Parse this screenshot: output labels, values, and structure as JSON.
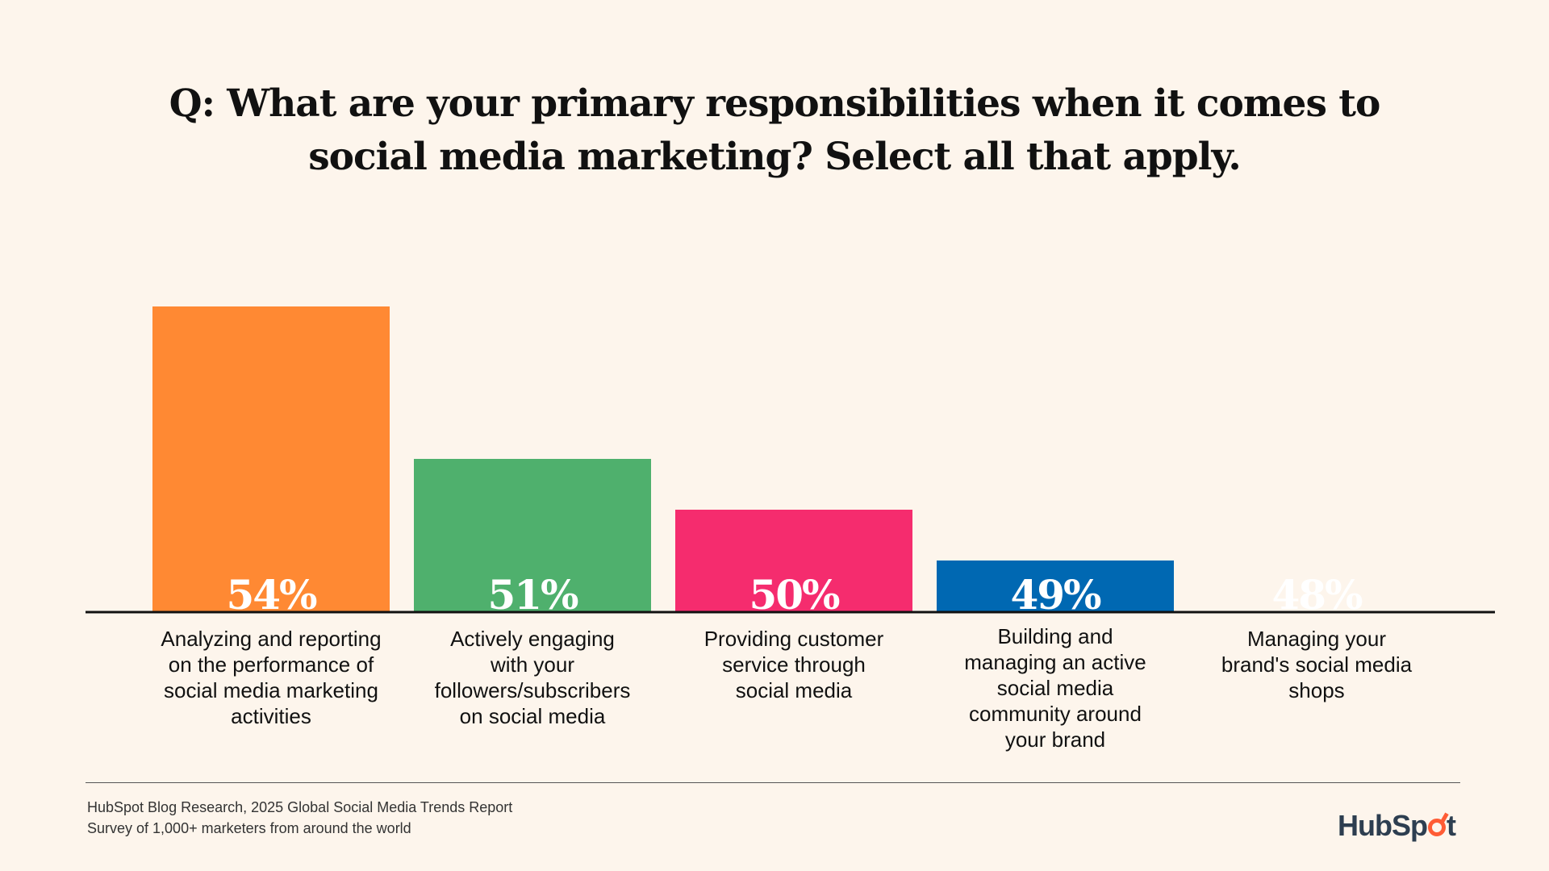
{
  "chart_data": {
    "type": "bar",
    "title": "Q: What are your primary responsibilities when it comes to social media marketing? Select all that apply.",
    "title_lines": [
      "Q: What are your primary responsibilities when it comes to",
      "social media marketing? Select all that apply."
    ],
    "categories": [
      "Analyzing and reporting on the performance of social media marketing activities",
      "Actively engaging with your followers/subscribers on social media",
      "Providing customer service through social media",
      "Building and managing an active social media community around your brand",
      "Managing your brand's social media shops"
    ],
    "category_lines": [
      [
        "Analyzing and reporting",
        "on the performance of",
        "social media marketing",
        "activities"
      ],
      [
        "Actively engaging",
        "with your",
        "followers/subscribers",
        "on social media"
      ],
      [
        "Providing customer",
        "service through",
        "social media"
      ],
      [
        "Building and",
        "managing an active",
        "social media",
        "community around",
        "your brand"
      ],
      [
        "Managing your",
        "brand's social media",
        "shops"
      ]
    ],
    "values": [
      54,
      51,
      50,
      49,
      48
    ],
    "data_labels": [
      "54%",
      "51%",
      "50%",
      "49%",
      "48%"
    ],
    "colors": [
      "#FF8933",
      "#4FB06D",
      "#F52C6E",
      "#0068B2",
      "#5B60D4"
    ],
    "unit": "%",
    "xlabel": "",
    "ylabel": "",
    "grid": false,
    "legend": "none"
  },
  "footer": {
    "source_line1": "HubSpot Blog Research, 2025 Global Social Media Trends Report",
    "source_line2": "Survey of 1,000+ marketers from around the world",
    "logo_text_a": "HubSp",
    "logo_text_b": "t",
    "logo_icon": "sprocket-icon",
    "logo_color": "#2D3E50",
    "logo_accent": "#FF5C35"
  },
  "background": "#FDF5EC"
}
